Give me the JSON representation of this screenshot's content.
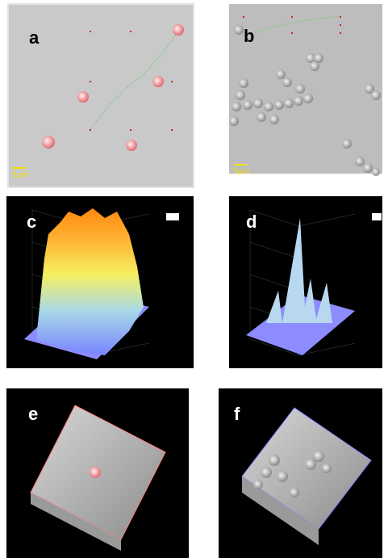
{
  "panels": [
    {
      "label": "a",
      "scale_bar": "5μm"
    },
    {
      "label": "b",
      "scale_bar": "5μm"
    },
    {
      "label": "c"
    },
    {
      "label": "d"
    },
    {
      "label": "e"
    },
    {
      "label": "f"
    }
  ]
}
